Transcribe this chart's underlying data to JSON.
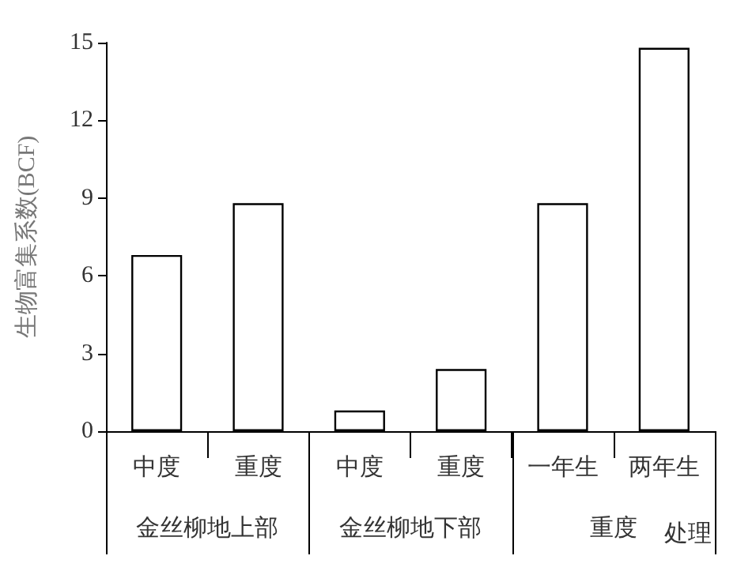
{
  "chart_data": {
    "type": "bar",
    "categories": [
      "中度",
      "重度",
      "中度",
      "重度",
      "一年生",
      "两年生"
    ],
    "values": [
      6.8,
      8.8,
      0.8,
      2.4,
      8.8,
      14.8
    ],
    "color": "#ffffff",
    "ylabel": "生物富集系数(BCF)",
    "xlabel": "处理",
    "annotations": [
      "金丝柳地上部",
      "金丝柳地下部",
      "重度"
    ],
    "ylim": [
      0,
      15
    ],
    "yticks": [
      0,
      3,
      6,
      9,
      12,
      15
    ],
    "grid": false
  }
}
